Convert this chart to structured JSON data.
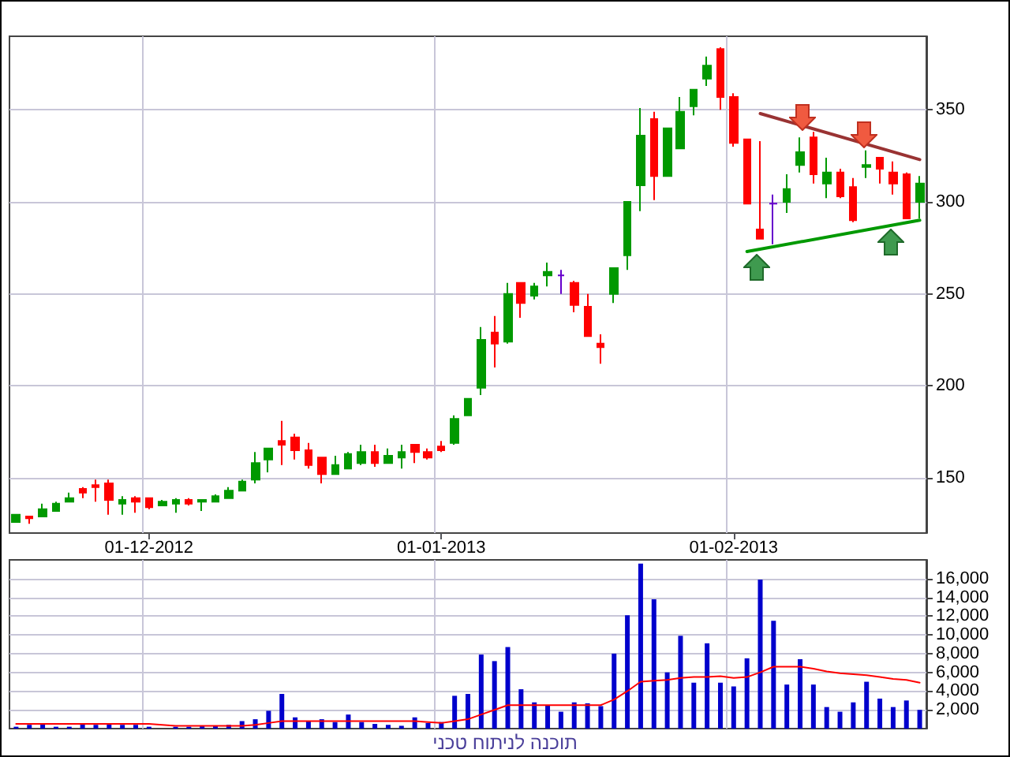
{
  "chart_data": [
    {
      "type": "candlestick",
      "categories": [
        null,
        null,
        null,
        null,
        null,
        null,
        null,
        null,
        null,
        null,
        "01-12-2012",
        null,
        null,
        null,
        null,
        null,
        null,
        null,
        null,
        null,
        null,
        null,
        null,
        null,
        null,
        null,
        null,
        null,
        null,
        null,
        null,
        null,
        "01-01-2013",
        null,
        null,
        null,
        null,
        null,
        null,
        null,
        null,
        null,
        null,
        null,
        null,
        null,
        null,
        null,
        null,
        null,
        null,
        null,
        null,
        null,
        "01-02-2013",
        null,
        null,
        null,
        null,
        null,
        null,
        null,
        null,
        null,
        null,
        null,
        null,
        null,
        null
      ],
      "ohlc": [
        [
          126,
          130,
          126,
          130
        ],
        [
          129,
          129,
          125,
          128
        ],
        [
          129,
          136,
          129,
          133
        ],
        [
          132,
          137,
          132,
          136
        ],
        [
          137,
          142,
          137,
          139
        ],
        [
          144,
          145,
          139,
          142
        ],
        [
          146,
          149,
          137,
          145
        ],
        [
          147,
          149,
          130,
          138
        ],
        [
          136,
          140,
          130,
          138
        ],
        [
          139,
          140,
          131,
          137
        ],
        [
          139,
          139,
          133,
          134
        ],
        [
          135,
          138,
          135,
          137
        ],
        [
          136,
          139,
          131,
          138
        ],
        [
          138,
          139,
          135,
          136
        ],
        [
          137,
          138,
          132,
          138
        ],
        [
          137,
          141,
          137,
          140
        ],
        [
          139,
          145,
          139,
          143
        ],
        [
          143,
          149,
          143,
          148
        ],
        [
          149,
          164,
          147,
          158
        ],
        [
          160,
          166,
          153,
          166
        ],
        [
          170,
          181,
          157,
          168
        ],
        [
          172,
          174,
          160,
          165
        ],
        [
          165,
          169,
          155,
          157
        ],
        [
          161,
          161,
          147,
          152
        ],
        [
          152,
          162,
          152,
          157
        ],
        [
          155,
          164,
          155,
          163
        ],
        [
          158,
          168,
          157,
          164
        ],
        [
          164,
          168,
          156,
          158
        ],
        [
          158,
          166,
          158,
          162
        ],
        [
          161,
          168,
          155,
          164
        ],
        [
          168,
          168,
          158,
          164
        ],
        [
          164,
          166,
          160,
          161
        ],
        [
          167,
          170,
          164,
          165
        ],
        [
          169,
          184,
          168,
          182
        ],
        [
          184,
          193,
          184,
          193
        ],
        [
          199,
          232,
          195,
          225
        ],
        [
          229,
          238,
          210,
          223
        ],
        [
          224,
          256,
          223,
          250
        ],
        [
          256,
          256,
          237,
          245
        ],
        [
          249,
          256,
          247,
          254
        ],
        [
          260,
          267,
          254,
          262
        ],
        [
          260,
          263,
          250,
          260
        ],
        [
          256,
          257,
          240,
          244
        ],
        [
          243,
          250,
          227,
          227
        ],
        [
          223,
          228,
          212,
          221
        ],
        [
          250,
          264,
          245,
          264
        ],
        [
          271,
          300,
          263,
          300
        ],
        [
          309,
          351,
          295,
          336
        ],
        [
          345,
          349,
          301,
          314
        ],
        [
          314,
          340,
          314,
          340
        ],
        [
          329,
          357,
          329,
          349
        ],
        [
          352,
          361,
          347,
          361
        ],
        [
          367,
          379,
          363,
          374
        ],
        [
          383,
          384,
          350,
          357
        ],
        [
          357,
          359,
          330,
          332
        ],
        [
          334,
          334,
          299,
          299
        ],
        [
          285,
          333,
          280,
          280
        ],
        [
          299,
          304,
          277,
          299
        ],
        [
          300,
          315,
          294,
          307
        ],
        [
          320,
          335,
          316,
          327
        ],
        [
          335,
          338,
          310,
          315
        ],
        [
          310,
          324,
          302,
          316
        ],
        [
          316,
          318,
          302,
          303
        ],
        [
          308,
          313,
          289,
          290
        ],
        [
          319,
          328,
          313,
          320
        ],
        [
          324,
          324,
          310,
          318
        ],
        [
          316,
          322,
          304,
          310
        ],
        [
          315,
          316,
          291,
          291
        ],
        [
          300,
          314,
          291,
          310
        ]
      ],
      "colors": [
        "#009900",
        "#ff0000",
        "#009900",
        "#009900",
        "#009900",
        "#ff0000",
        "#ff0000",
        "#ff0000",
        "#009900",
        "#ff0000",
        "#ff0000",
        "#009900",
        "#009900",
        "#ff0000",
        "#009900",
        "#009900",
        "#009900",
        "#009900",
        "#009900",
        "#009900",
        "#ff0000",
        "#ff0000",
        "#ff0000",
        "#ff0000",
        "#009900",
        "#009900",
        "#009900",
        "#ff0000",
        "#009900",
        "#009900",
        "#ff0000",
        "#ff0000",
        "#ff0000",
        "#009900",
        "#009900",
        "#009900",
        "#ff0000",
        "#009900",
        "#ff0000",
        "#009900",
        "#009900",
        "#6600cc",
        "#ff0000",
        "#ff0000",
        "#ff0000",
        "#009900",
        "#009900",
        "#009900",
        "#ff0000",
        "#009900",
        "#009900",
        "#009900",
        "#009900",
        "#ff0000",
        "#ff0000",
        "#ff0000",
        "#ff0000",
        "#6600cc",
        "#009900",
        "#009900",
        "#ff0000",
        "#009900",
        "#ff0000",
        "#ff0000",
        "#009900",
        "#ff0000",
        "#ff0000",
        "#ff0000",
        "#009900"
      ],
      "series": [
        {
          "type": "line",
          "color": "#993333",
          "values": [
            null,
            null,
            null,
            null,
            null,
            null,
            null,
            null,
            null,
            null,
            null,
            null,
            null,
            null,
            null,
            null,
            null,
            null,
            null,
            null,
            null,
            null,
            null,
            null,
            null,
            null,
            null,
            null,
            null,
            null,
            null,
            null,
            null,
            null,
            null,
            null,
            null,
            null,
            null,
            null,
            null,
            null,
            null,
            null,
            null,
            null,
            null,
            null,
            null,
            null,
            null,
            null,
            null,
            null,
            null,
            null,
            348,
            null,
            null,
            null,
            null,
            null,
            null,
            null,
            null,
            null,
            null,
            null,
            323
          ]
        },
        {
          "type": "line",
          "color": "#009900",
          "values": [
            null,
            null,
            null,
            null,
            null,
            null,
            null,
            null,
            null,
            null,
            null,
            null,
            null,
            null,
            null,
            null,
            null,
            null,
            null,
            null,
            null,
            null,
            null,
            null,
            null,
            null,
            null,
            null,
            null,
            null,
            null,
            null,
            null,
            null,
            null,
            null,
            null,
            null,
            null,
            null,
            null,
            null,
            null,
            null,
            null,
            null,
            null,
            null,
            null,
            null,
            null,
            null,
            null,
            null,
            null,
            273,
            null,
            null,
            null,
            null,
            null,
            null,
            null,
            null,
            null,
            null,
            null,
            null,
            290
          ]
        }
      ],
      "marker": "none",
      "ylim": [
        120,
        390
      ],
      "yticks": [
        150,
        200,
        250,
        300,
        350
      ],
      "grid": true
    },
    {
      "type": "bar",
      "categories": [
        null,
        null,
        null,
        null,
        null,
        null,
        null,
        null,
        null,
        null,
        null,
        null,
        null,
        null,
        null,
        null,
        null,
        null,
        null,
        null,
        null,
        null,
        null,
        null,
        null,
        null,
        null,
        null,
        null,
        null,
        null,
        null,
        null,
        null,
        null,
        null,
        null,
        null,
        null,
        null,
        null,
        null,
        null,
        null,
        null,
        null,
        null,
        null,
        null,
        null,
        null,
        null,
        null,
        null,
        null,
        null,
        null,
        null,
        null,
        null,
        null,
        null,
        null,
        null,
        null,
        null,
        null,
        null,
        null
      ],
      "series": [
        {
          "type": "bar",
          "color": "#0000cc",
          "values": [
            200,
            400,
            500,
            200,
            200,
            500,
            400,
            500,
            400,
            400,
            200,
            null,
            200,
            200,
            300,
            300,
            400,
            800,
            1000,
            1900,
            3700,
            1200,
            800,
            1000,
            700,
            1500,
            700,
            500,
            400,
            300,
            1200,
            600,
            700,
            3500,
            3700,
            7900,
            7200,
            8700,
            4200,
            2800,
            2500,
            1800,
            2800,
            2700,
            2400,
            8000,
            12100,
            17600,
            13800,
            6000,
            9900,
            4900,
            9100,
            4900,
            4500,
            7500,
            15900,
            11500,
            4700,
            7400,
            4700,
            2300,
            1800,
            2800,
            5000,
            3200,
            2300,
            3000,
            2000
          ]
        },
        {
          "type": "line",
          "color": "#ff0000",
          "values": [
            500,
            500,
            500,
            500,
            500,
            500,
            500,
            500,
            500,
            500,
            500,
            400,
            300,
            300,
            300,
            300,
            300,
            300,
            400,
            600,
            800,
            800,
            800,
            800,
            800,
            800,
            800,
            800,
            800,
            800,
            800,
            700,
            600,
            800,
            1000,
            1500,
            2000,
            2500,
            2500,
            2500,
            2500,
            2500,
            2500,
            2500,
            2500,
            3100,
            4000,
            5000,
            5100,
            5200,
            5400,
            5500,
            5500,
            5600,
            5400,
            5500,
            6000,
            6600,
            6600,
            6600,
            6400,
            6100,
            5900,
            5800,
            5700,
            5500,
            5300,
            5200,
            4900
          ]
        }
      ],
      "marker": "none",
      "ylim": [
        0,
        18000
      ],
      "yticks": [
        {
          "value": 2000,
          "label": "2,000"
        },
        {
          "value": 4000,
          "label": "4,000"
        },
        {
          "value": 6000,
          "label": "6,000"
        },
        {
          "value": 8000,
          "label": "8,000"
        },
        {
          "value": 10000,
          "label": "10,000"
        },
        {
          "value": 12000,
          "label": "12,000"
        },
        {
          "value": 14000,
          "label": "14,000"
        },
        {
          "value": 16000,
          "label": "16,000"
        }
      ],
      "grid": true,
      "tick_labels": "y",
      "annotations": [
        "תוכנה לניתוח טכני"
      ]
    }
  ]
}
